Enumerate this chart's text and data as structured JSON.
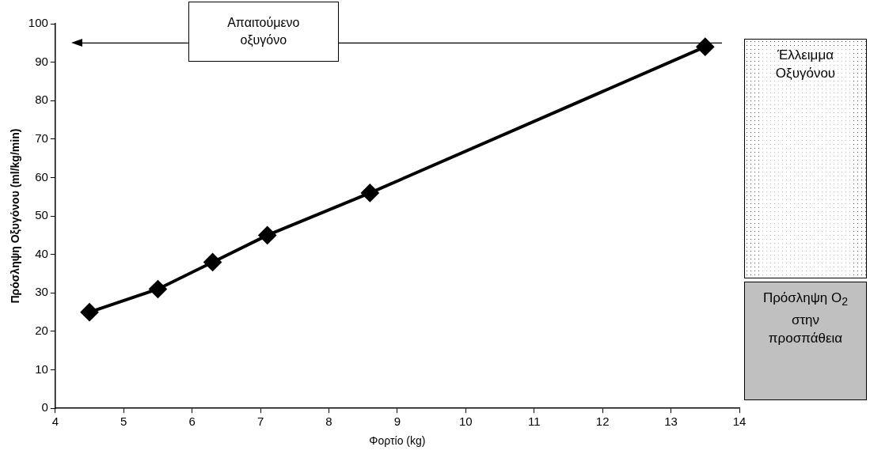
{
  "chart_data": {
    "type": "line",
    "xlabel": "Φορτίο (kg)",
    "ylabel": "Πρόσληψη Οξυγόνου (ml/kg/min)",
    "x": [
      4.5,
      5.5,
      6.3,
      7.1,
      8.6,
      13.5
    ],
    "series": [
      {
        "color": "#000000",
        "values": [
          25,
          31,
          38,
          45,
          56,
          94
        ]
      }
    ],
    "xlim": [
      4,
      14
    ],
    "xticks": [
      4,
      5,
      6,
      7,
      8,
      9,
      10,
      11,
      12,
      13,
      14
    ],
    "ylim": [
      0,
      100
    ],
    "yticks": [
      0,
      10,
      20,
      30,
      40,
      50,
      60,
      70,
      80,
      90,
      100
    ],
    "ref_lines": [
      {
        "axis": "y",
        "value": 95,
        "label": "Απαιτούμενο οξυγόνο",
        "color": "#000000"
      }
    ],
    "annotations": [
      "Έλλειμμα Οξυγόνου",
      "Πρόσληψη O$_{2}$ στην προσπάθεια"
    ],
    "marker": "diamond",
    "line_style": "solid",
    "grid": false,
    "legend": false
  }
}
